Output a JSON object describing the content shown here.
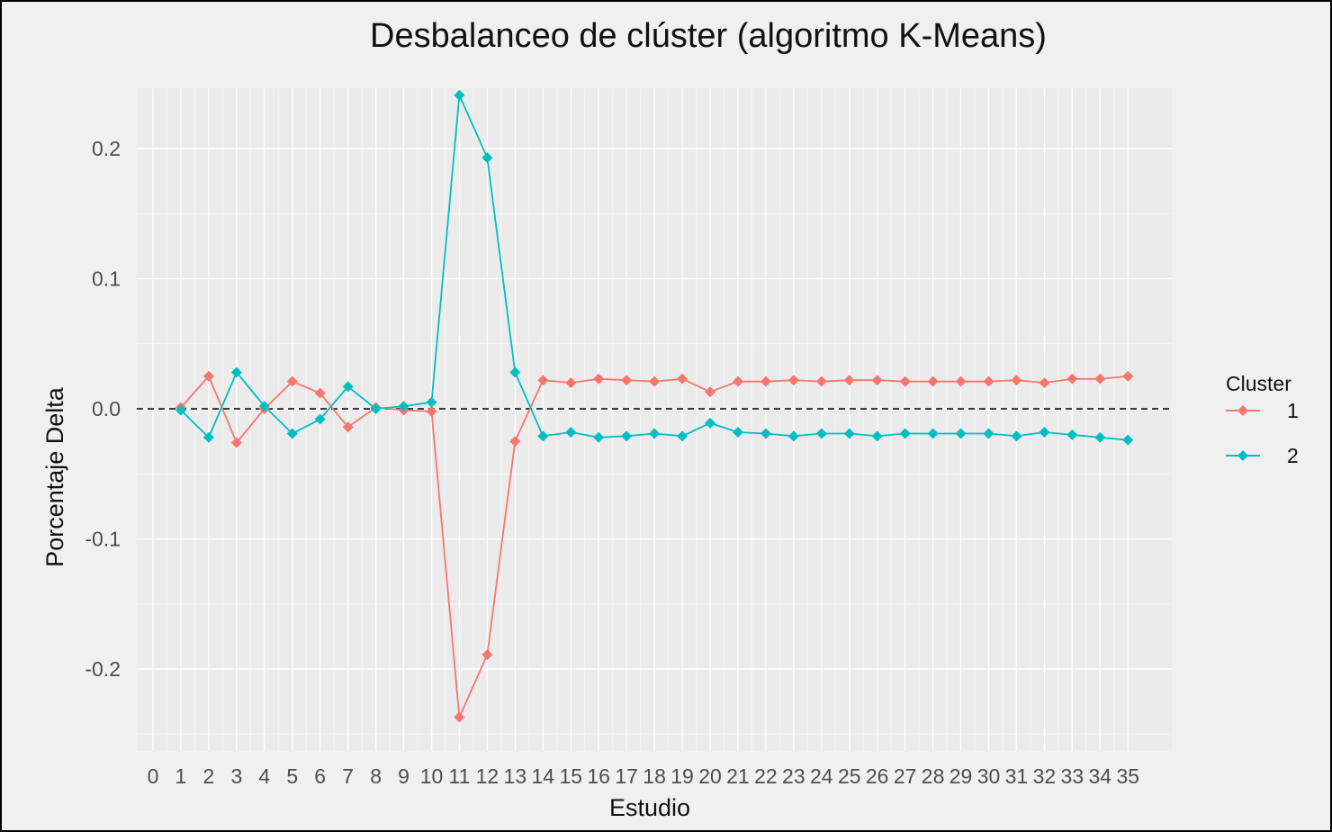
{
  "chart_data": {
    "type": "line",
    "title": "Desbalanceo de clúster (algoritmo K-Means)",
    "xlabel": "Estudio",
    "ylabel": "Porcentaje Delta",
    "xlim": [
      0,
      35
    ],
    "ylim": [
      -0.245,
      0.245
    ],
    "x_ticks": [
      "0",
      "1",
      "2",
      "3",
      "4",
      "5",
      "6",
      "7",
      "8",
      "9",
      "10",
      "11",
      "12",
      "13",
      "14",
      "15",
      "16",
      "17",
      "18",
      "19",
      "20",
      "21",
      "22",
      "23",
      "24",
      "25",
      "26",
      "27",
      "28",
      "29",
      "30",
      "31",
      "32",
      "33",
      "34",
      "35"
    ],
    "y_ticks": [
      0.2,
      0.1,
      0.0,
      -0.1,
      -0.2
    ],
    "y_tick_labels": [
      "0.2",
      "0.1",
      "0.0",
      "-0.1",
      "-0.2"
    ],
    "reference_line": {
      "y": 0,
      "style": "dashed"
    },
    "grid": true,
    "legend": {
      "title": "Cluster",
      "position": "right"
    },
    "x": [
      1,
      2,
      3,
      4,
      5,
      6,
      7,
      8,
      9,
      10,
      11,
      12,
      13,
      14,
      15,
      16,
      17,
      18,
      19,
      20,
      21,
      22,
      23,
      24,
      25,
      26,
      27,
      28,
      29,
      30,
      31,
      32,
      33,
      34,
      35
    ],
    "series": [
      {
        "name": "1",
        "color": "#F8766D",
        "values": [
          0.001,
          0.025,
          -0.026,
          0.0,
          0.021,
          0.012,
          -0.014,
          0.001,
          -0.001,
          -0.002,
          -0.237,
          -0.189,
          -0.025,
          0.022,
          0.02,
          0.023,
          0.022,
          0.021,
          0.023,
          0.013,
          0.021,
          0.021,
          0.022,
          0.021,
          0.022,
          0.022,
          0.021,
          0.021,
          0.021,
          0.021,
          0.022,
          0.02,
          0.023,
          0.023,
          0.025
        ]
      },
      {
        "name": "2",
        "color": "#00BFC4",
        "values": [
          -0.001,
          -0.022,
          0.028,
          0.002,
          -0.019,
          -0.008,
          0.017,
          0.0,
          0.002,
          0.005,
          0.241,
          0.193,
          0.028,
          -0.021,
          -0.018,
          -0.022,
          -0.021,
          -0.019,
          -0.021,
          -0.011,
          -0.018,
          -0.019,
          -0.021,
          -0.019,
          -0.019,
          -0.021,
          -0.019,
          -0.019,
          -0.019,
          -0.019,
          -0.021,
          -0.018,
          -0.02,
          -0.022,
          -0.024
        ]
      }
    ]
  }
}
